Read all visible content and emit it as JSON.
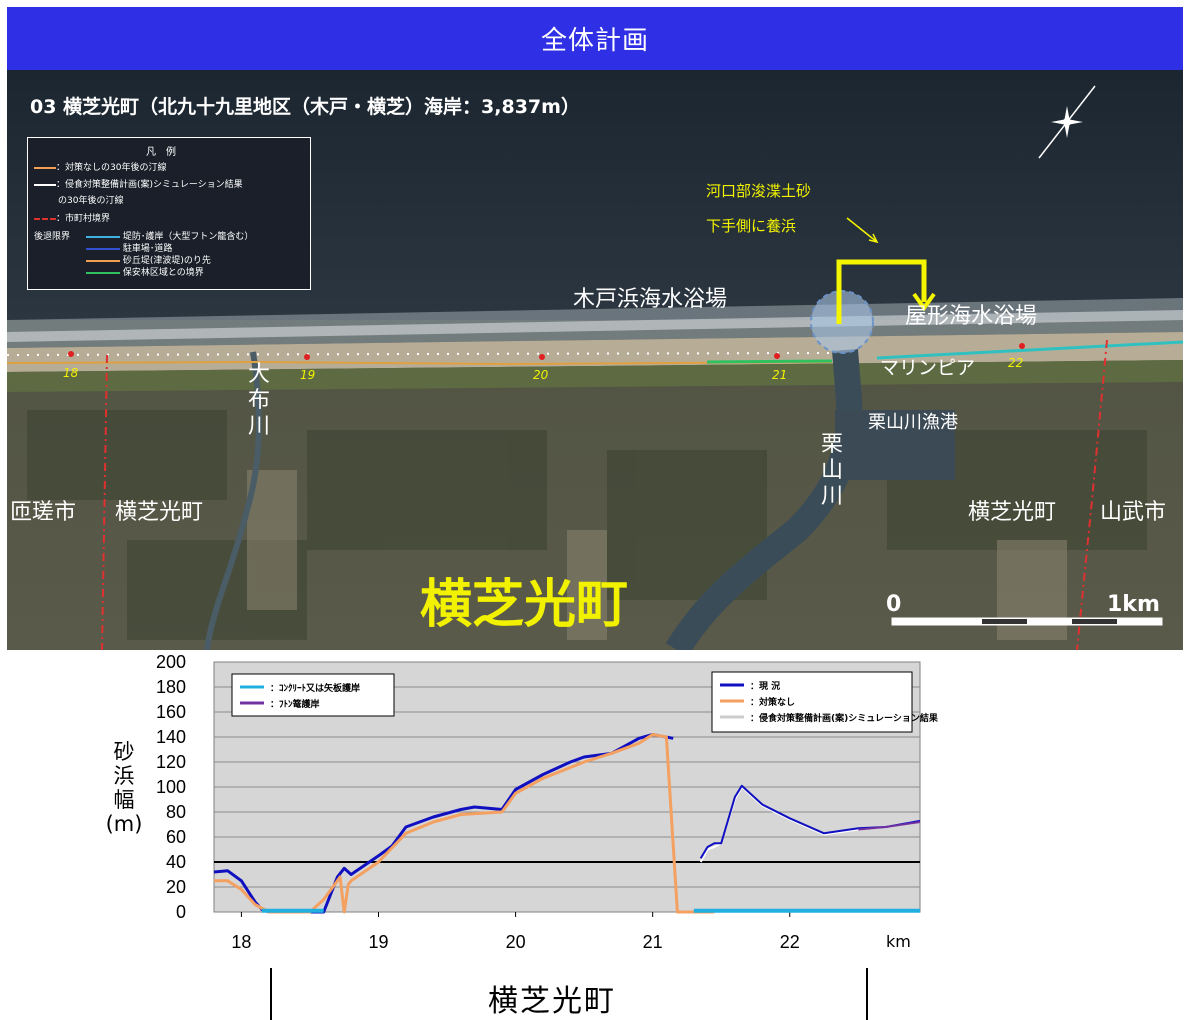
{
  "header": {
    "title": "全体計画"
  },
  "map": {
    "title": "03 横芝光町（北九十九里地区（木戸・横芝）海岸：3,837m）",
    "legend": {
      "heading": "凡　例",
      "items": [
        {
          "label": "：対策なしの30年後の汀線",
          "color": "#f0a050"
        },
        {
          "label": "：侵食対策整備計画(案)シミュレーション結果",
          "color": "#ffffff"
        },
        {
          "label": "の30年後の汀線",
          "color": ""
        },
        {
          "label": "：市町村境界",
          "color": "#e03030"
        }
      ],
      "retreat_title": "後退限界",
      "retreat_items": [
        {
          "label": "堤防･護岸（大型フトン籠含む）",
          "color": "#40b0e0"
        },
        {
          "label": "駐車場･道路",
          "color": "#3050d0"
        },
        {
          "label": "砂丘堤(津波堤)のり先",
          "color": "#f0a050"
        },
        {
          "label": "保安林区域との境界",
          "color": "#30c060"
        }
      ]
    },
    "labels": {
      "kido_beach": "木戸浜海水浴場",
      "yakata_beach": "屋形海水浴場",
      "marinepia": "マリンピア",
      "kuriyama_port": "栗山川漁港",
      "obu_river": "大布川",
      "kuriyama_river": "栗山川",
      "sosa_city": "匝瑳市",
      "yokoshibahikari_w": "横芝光町",
      "yokoshibahikari_e": "横芝光町",
      "sanmu_city": "山武市",
      "town_big": "横芝光町",
      "note_line1": "河口部浚渫土砂",
      "note_line2": "下手側に養浜"
    },
    "km_markers": [
      "18",
      "19",
      "20",
      "21",
      "22"
    ],
    "scale": {
      "start": "0",
      "end": "1km"
    },
    "compass_icon": "compass-icon"
  },
  "chart_data": {
    "type": "line",
    "title": "",
    "xlabel": "km",
    "ylabel": "砂浜幅(m)",
    "xlim": [
      17.8,
      22.95
    ],
    "ylim": [
      0,
      200
    ],
    "xticks": [
      18,
      19,
      20,
      21,
      22
    ],
    "yticks": [
      0,
      20,
      40,
      60,
      80,
      100,
      120,
      140,
      160,
      180,
      200
    ],
    "threshold": 40,
    "legend_left": [
      {
        "name": "：ｺﾝｸﾘｰﾄ又は矢板護岸",
        "color": "#20b0e0"
      },
      {
        "name": "：ﾌﾄﾝ篭護岸",
        "color": "#7030a0"
      }
    ],
    "legend_right": [
      {
        "name": "：現 況",
        "color": "#1010c0"
      },
      {
        "name": "：対策なし",
        "color": "#f4a060"
      },
      {
        "name": "：侵食対策整備計画(案)シミュレーション結果",
        "color": "#ffffff"
      }
    ],
    "series": [
      {
        "name": "現 況",
        "color": "#1010c0",
        "width": 3,
        "x": [
          17.8,
          17.9,
          18.0,
          18.1,
          18.15,
          18.2,
          18.6,
          18.7,
          18.75,
          18.8,
          19.0,
          19.1,
          19.2,
          19.4,
          19.6,
          19.7,
          19.9,
          20.0,
          20.2,
          20.4,
          20.5,
          20.7,
          20.9,
          21.0,
          21.05,
          21.15
        ],
        "y": [
          32,
          33,
          25,
          8,
          2,
          0,
          0,
          28,
          35,
          30,
          45,
          53,
          68,
          76,
          82,
          84,
          82,
          98,
          110,
          120,
          124,
          127,
          139,
          142,
          141,
          139
        ]
      },
      {
        "name": "対策なし",
        "color": "#f4a060",
        "width": 3,
        "x": [
          17.8,
          17.9,
          18.0,
          18.1,
          18.2,
          18.5,
          18.6,
          18.7,
          18.72,
          18.75,
          18.78,
          18.8,
          19.0,
          19.2,
          19.4,
          19.6,
          19.9,
          20.0,
          20.2,
          20.5,
          20.7,
          20.9,
          21.0,
          21.1,
          21.18,
          21.22,
          21.3,
          21.45
        ],
        "y": [
          25,
          25,
          18,
          6,
          0,
          0,
          10,
          25,
          28,
          0,
          22,
          25,
          40,
          63,
          72,
          78,
          80,
          95,
          107,
          120,
          127,
          135,
          142,
          140,
          0,
          0,
          0,
          0
        ]
      },
      {
        "name": "侵食対策整備計画(案)シミュレーション結果",
        "color": "#ffffff",
        "width": 2,
        "x": [
          21.35,
          21.4,
          21.45,
          21.5,
          21.6,
          21.65,
          21.7,
          21.8,
          22.0,
          22.25,
          22.5,
          22.7,
          22.9
        ],
        "y": [
          40,
          50,
          52,
          55,
          90,
          100,
          95,
          85,
          74,
          62,
          66,
          68,
          72
        ]
      },
      {
        "name": "現況東",
        "color": "#1010c0",
        "width": 2,
        "x": [
          21.35,
          21.4,
          21.45,
          21.5,
          21.6,
          21.65,
          21.7,
          21.8,
          22.0,
          22.25,
          22.5,
          22.7,
          22.95
        ],
        "y": [
          43,
          52,
          55,
          55,
          92,
          101,
          96,
          86,
          75,
          63,
          67,
          68,
          73
        ]
      },
      {
        "name": "ﾌﾄﾝ篭護岸",
        "color": "#7030a0",
        "width": 2,
        "x": [
          22.5,
          22.7,
          22.95
        ],
        "y": [
          66,
          68,
          72
        ]
      },
      {
        "name": "ｺﾝｸﾘｰﾄ又は矢板護岸",
        "color": "#20b0e0",
        "width": 4,
        "x": [
          18.15,
          18.6
        ],
        "y": [
          1,
          1
        ]
      },
      {
        "name": "ｺﾝｸﾘｰﾄ又は矢板護岸2",
        "color": "#20b0e0",
        "width": 4,
        "x": [
          21.3,
          22.95
        ],
        "y": [
          1,
          1
        ]
      }
    ]
  },
  "bottom": {
    "town": "横芝光町"
  }
}
